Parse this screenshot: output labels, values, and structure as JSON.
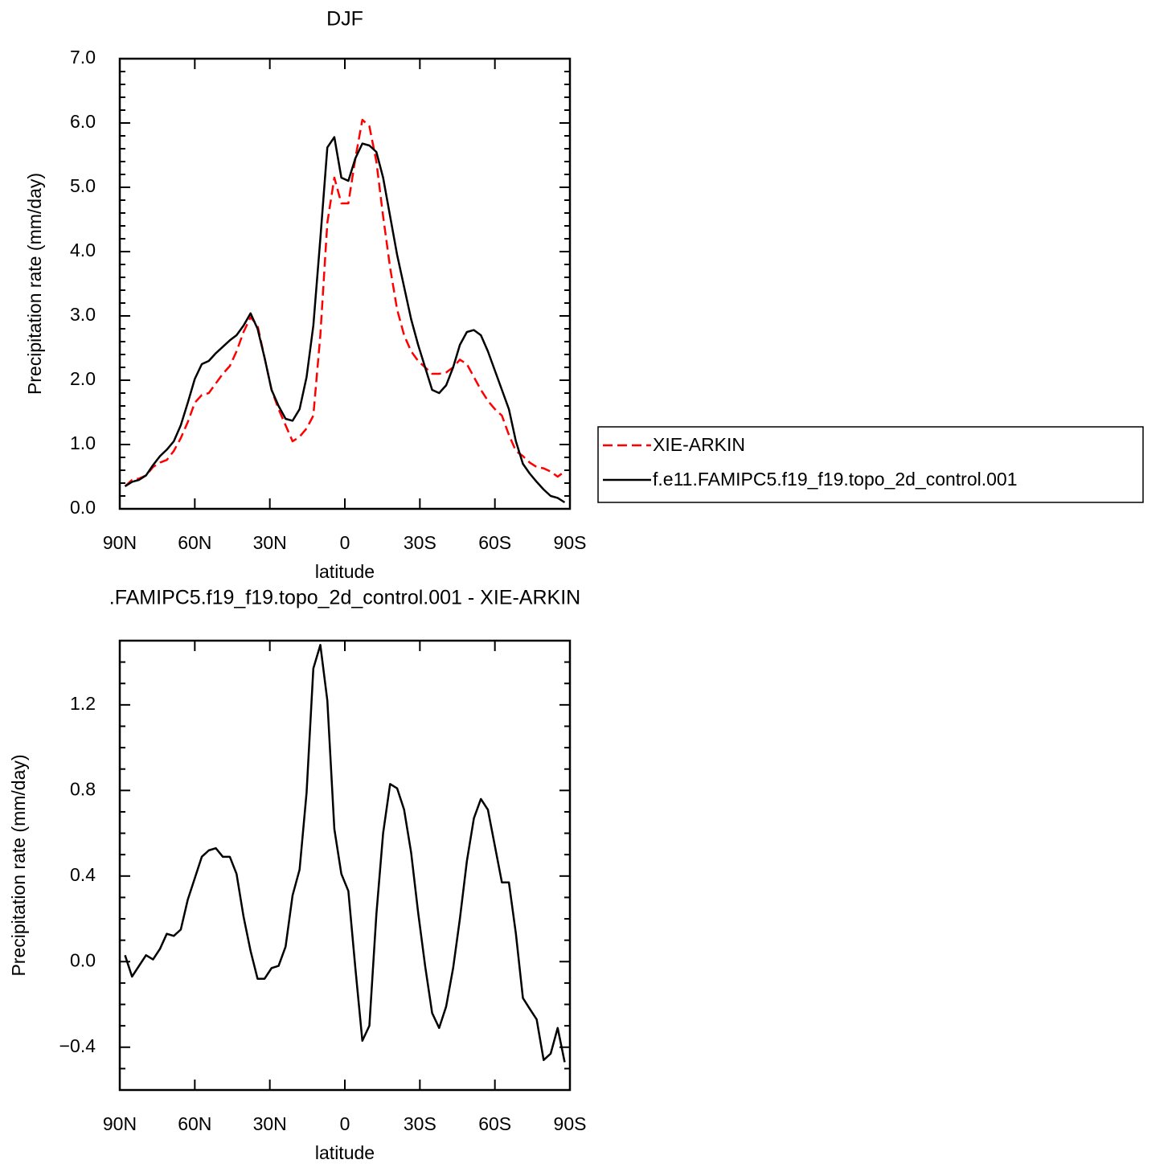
{
  "chart_data": [
    {
      "type": "line",
      "title": "DJF",
      "ylabel": "Precipitation rate (mm/day)",
      "xlabel": "latitude",
      "x": [
        87.9,
        85.1,
        82.3,
        79.5,
        76.7,
        73.9,
        71.2,
        68.4,
        65.6,
        62.8,
        60.0,
        57.2,
        54.4,
        51.6,
        48.8,
        46.0,
        43.3,
        40.5,
        37.7,
        34.9,
        32.1,
        29.3,
        26.5,
        23.7,
        20.9,
        18.1,
        15.3,
        12.6,
        9.8,
        7.0,
        4.2,
        1.4,
        -1.4,
        -4.2,
        -7.0,
        -9.8,
        -12.6,
        -15.3,
        -18.1,
        -20.9,
        -23.7,
        -26.5,
        -29.3,
        -32.1,
        -34.9,
        -37.7,
        -40.5,
        -43.3,
        -46.0,
        -48.8,
        -51.6,
        -54.4,
        -57.2,
        -60.0,
        -62.8,
        -65.6,
        -68.4,
        -71.2,
        -73.9,
        -76.7,
        -79.5,
        -82.3,
        -85.1,
        -87.9
      ],
      "series": [
        {
          "name": "XIE-ARKIN",
          "color": "#ff0000",
          "dashed": true,
          "values": [
            0.35,
            0.45,
            0.47,
            0.52,
            0.65,
            0.72,
            0.76,
            0.9,
            1.1,
            1.35,
            1.65,
            1.77,
            1.8,
            1.95,
            2.1,
            2.22,
            2.45,
            2.75,
            2.98,
            2.85,
            2.35,
            1.85,
            1.55,
            1.3,
            1.05,
            1.12,
            1.25,
            1.45,
            2.7,
            4.45,
            5.15,
            4.75,
            4.75,
            5.45,
            6.05,
            5.95,
            5.4,
            4.55,
            3.75,
            3.1,
            2.7,
            2.45,
            2.3,
            2.2,
            2.1,
            2.1,
            2.12,
            2.2,
            2.32,
            2.25,
            2.05,
            1.85,
            1.68,
            1.55,
            1.45,
            1.15,
            0.9,
            0.82,
            0.72,
            0.65,
            0.63,
            0.58,
            0.5,
            0.58
          ]
        },
        {
          "name": "f.e11.FAMIPC5.f19_f19.topo_2d_control.001",
          "color": "#000000",
          "dashed": false,
          "values": [
            0.35,
            0.42,
            0.45,
            0.52,
            0.68,
            0.82,
            0.92,
            1.05,
            1.3,
            1.65,
            2.02,
            2.25,
            2.3,
            2.42,
            2.52,
            2.62,
            2.7,
            2.85,
            3.04,
            2.8,
            2.35,
            1.85,
            1.6,
            1.4,
            1.37,
            1.55,
            2.05,
            2.85,
            4.2,
            5.62,
            5.78,
            5.15,
            5.1,
            5.45,
            5.68,
            5.65,
            5.55,
            5.15,
            4.55,
            3.95,
            3.45,
            2.95,
            2.55,
            2.2,
            1.85,
            1.8,
            1.92,
            2.2,
            2.55,
            2.75,
            2.78,
            2.7,
            2.45,
            2.15,
            1.85,
            1.55,
            1.05,
            0.7,
            0.55,
            0.42,
            0.3,
            0.2,
            0.17,
            0.1
          ]
        }
      ],
      "xlim": [
        90,
        -90
      ],
      "xticks": [
        {
          "value": 90,
          "label": "90N"
        },
        {
          "value": 60,
          "label": "60N"
        },
        {
          "value": 30,
          "label": "30N"
        },
        0,
        {
          "value": -30,
          "label": "30S"
        },
        {
          "value": -60,
          "label": "60S"
        },
        {
          "value": -90,
          "label": "90S"
        }
      ],
      "ylim": [
        0,
        7
      ],
      "yticks": [
        {
          "value": 0,
          "label": "0.0"
        },
        {
          "value": 1,
          "label": "1.0"
        },
        {
          "value": 2,
          "label": "2.0"
        },
        {
          "value": 3,
          "label": "3.0"
        },
        {
          "value": 4,
          "label": "4.0"
        },
        {
          "value": 5,
          "label": "5.0"
        },
        {
          "value": 6,
          "label": "6.0"
        },
        {
          "value": 7,
          "label": "7.0"
        }
      ],
      "legend": "right"
    },
    {
      "type": "line",
      "title": ".FAMIPC5.f19_f19.topo_2d_control.001  -  XIE-ARKIN",
      "ylabel": "Precipitation rate (mm/day)",
      "xlabel": "latitude",
      "x": [
        87.9,
        85.1,
        82.3,
        79.5,
        76.7,
        73.9,
        71.2,
        68.4,
        65.6,
        62.8,
        60.0,
        57.2,
        54.4,
        51.6,
        48.8,
        46.0,
        43.3,
        40.5,
        37.7,
        34.9,
        32.1,
        29.3,
        26.5,
        23.7,
        20.9,
        18.1,
        15.3,
        12.6,
        9.8,
        7.0,
        4.2,
        1.4,
        -1.4,
        -4.2,
        -7.0,
        -9.8,
        -12.6,
        -15.3,
        -18.1,
        -20.9,
        -23.7,
        -26.5,
        -29.3,
        -32.1,
        -34.9,
        -37.7,
        -40.5,
        -43.3,
        -46.0,
        -48.8,
        -51.6,
        -54.4,
        -57.2,
        -60.0,
        -62.8,
        -65.6,
        -68.4,
        -71.2,
        -73.9,
        -76.7,
        -79.5,
        -82.3,
        -85.1,
        -87.9
      ],
      "color": "#000000",
      "values": [
        0.03,
        -0.07,
        -0.02,
        0.03,
        0.01,
        0.06,
        0.13,
        0.12,
        0.15,
        0.29,
        0.39,
        0.49,
        0.52,
        0.53,
        0.49,
        0.49,
        0.41,
        0.21,
        0.05,
        -0.08,
        -0.08,
        -0.03,
        -0.02,
        0.07,
        0.31,
        0.43,
        0.79,
        1.37,
        1.48,
        1.22,
        0.62,
        0.41,
        0.33,
        -0.03,
        -0.37,
        -0.3,
        0.22,
        0.6,
        0.83,
        0.81,
        0.71,
        0.51,
        0.23,
        -0.02,
        -0.24,
        -0.31,
        -0.21,
        -0.03,
        0.2,
        0.47,
        0.67,
        0.76,
        0.71,
        0.54,
        0.37,
        0.37,
        0.13,
        -0.17,
        -0.22,
        -0.27,
        -0.46,
        -0.43,
        -0.31,
        -0.47
      ],
      "xlim": [
        90,
        -90
      ],
      "xticks": [
        {
          "value": 90,
          "label": "90N"
        },
        {
          "value": 60,
          "label": "60N"
        },
        {
          "value": 30,
          "label": "30N"
        },
        0,
        {
          "value": -30,
          "label": "30S"
        },
        {
          "value": -60,
          "label": "60S"
        },
        {
          "value": -90,
          "label": "90S"
        }
      ],
      "ylim": [
        -0.6,
        1.5
      ],
      "yticks": [
        {
          "value": -0.4,
          "label": "−0.4"
        },
        {
          "value": 0,
          "label": "0.0"
        },
        0.4,
        0.8,
        1.2
      ]
    }
  ]
}
